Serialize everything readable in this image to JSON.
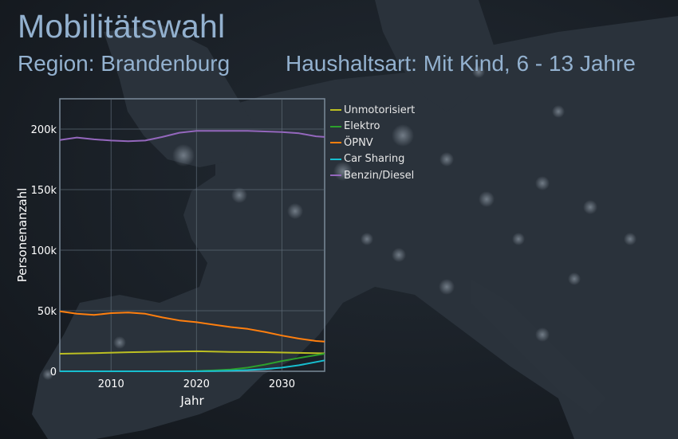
{
  "title": "Mobilitätswahl",
  "subtitle_region": "Region: Brandenburg",
  "subtitle_household": "Haushaltsart: Mit Kind, 6 - 13 Jahre",
  "colors": {
    "title": "#93b1cf",
    "Unmotorisiert": "#bcbf22",
    "Elektro": "#2ca02c",
    "ÖPNV": "#ff7f0e",
    "Car Sharing": "#17becf",
    "Benzin/Diesel": "#9467bd"
  },
  "chart_data": {
    "type": "line",
    "title": "",
    "xlabel": "Jahr",
    "ylabel": "Personenanzahl",
    "xlim": [
      2004,
      2035
    ],
    "ylim": [
      0,
      225000
    ],
    "x_ticks": [
      {
        "value": 2010,
        "label": "2010"
      },
      {
        "value": 2020,
        "label": "2020"
      },
      {
        "value": 2030,
        "label": "2030"
      }
    ],
    "y_ticks": [
      {
        "value": 0,
        "label": "0"
      },
      {
        "value": 50000,
        "label": "50k"
      },
      {
        "value": 100000,
        "label": "100k"
      },
      {
        "value": 150000,
        "label": "150k"
      },
      {
        "value": 200000,
        "label": "200k"
      }
    ],
    "grid": true,
    "legend_position": "right",
    "series": [
      {
        "name": "Unmotorisiert",
        "color": "#bcbf22",
        "x": [
          2004,
          2008,
          2012,
          2016,
          2020,
          2024,
          2028,
          2032,
          2035
        ],
        "y": [
          14500,
          15000,
          15700,
          16200,
          16500,
          16000,
          15800,
          15200,
          14800
        ]
      },
      {
        "name": "Elektro",
        "color": "#2ca02c",
        "x": [
          2004,
          2008,
          2012,
          2016,
          2020,
          2022,
          2024,
          2026,
          2028,
          2030,
          2032,
          2035
        ],
        "y": [
          0,
          0,
          0,
          0,
          200,
          700,
          1500,
          3000,
          5500,
          8500,
          11000,
          14500
        ]
      },
      {
        "name": "ÖPNV",
        "color": "#ff7f0e",
        "x": [
          2004,
          2006,
          2008,
          2010,
          2012,
          2014,
          2016,
          2018,
          2020,
          2022,
          2024,
          2026,
          2028,
          2030,
          2032,
          2034,
          2035
        ],
        "y": [
          49500,
          47500,
          46500,
          48000,
          48500,
          47500,
          44500,
          42000,
          40500,
          38500,
          36500,
          35000,
          32500,
          29500,
          27000,
          25000,
          24500
        ]
      },
      {
        "name": "Car Sharing",
        "color": "#17becf",
        "x": [
          2004,
          2008,
          2012,
          2016,
          2020,
          2022,
          2024,
          2026,
          2028,
          2030,
          2032,
          2035
        ],
        "y": [
          0,
          0,
          0,
          0,
          0,
          200,
          500,
          1000,
          1800,
          3000,
          5000,
          9000
        ]
      },
      {
        "name": "Benzin/Diesel",
        "color": "#9467bd",
        "x": [
          2004,
          2006,
          2008,
          2010,
          2012,
          2014,
          2016,
          2018,
          2020,
          2022,
          2024,
          2026,
          2028,
          2030,
          2032,
          2034,
          2035
        ],
        "y": [
          191000,
          193000,
          191500,
          190500,
          190000,
          190500,
          193500,
          197000,
          198500,
          198500,
          198500,
          198500,
          198000,
          197500,
          196500,
          194000,
          193500
        ]
      }
    ]
  }
}
